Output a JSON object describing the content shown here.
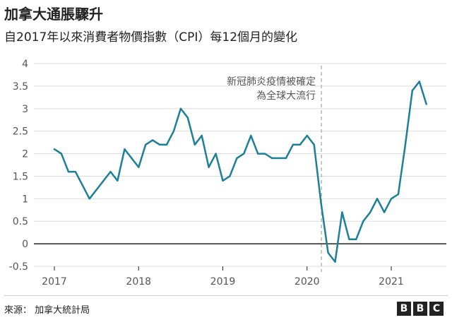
{
  "header": {
    "title": "加拿大通脹驟升",
    "subtitle": "自2017年以來消費者物價指數（CPI）每12個月的變化"
  },
  "footer": {
    "source": "來源：  加拿大統計局",
    "logo_letters": [
      "B",
      "B",
      "C"
    ]
  },
  "chart_data": {
    "type": "line",
    "title": "加拿大通脹驟升",
    "subtitle": "自2017年以來消費者物價指數（CPI）每12個月的變化",
    "x_unit": "months since Jan 2017",
    "xlim": [
      0,
      54
    ],
    "ylim": [
      -0.5,
      4
    ],
    "yticks": [
      -0.5,
      0,
      0.5,
      1,
      1.5,
      2,
      2.5,
      3,
      3.5,
      4
    ],
    "ytick_labels": [
      "-0.5",
      "0",
      "0.5",
      "1",
      "1.5",
      "2",
      "2.5",
      "3",
      "3.5",
      "4"
    ],
    "xticks": [
      {
        "label": "2017",
        "pos": 0
      },
      {
        "label": "2018",
        "pos": 12
      },
      {
        "label": "2019",
        "pos": 24
      },
      {
        "label": "2020",
        "pos": 36
      },
      {
        "label": "2021",
        "pos": 48
      }
    ],
    "grid": true,
    "colors": {
      "line": "#1d8098",
      "grid": "#dddddd",
      "zero": "#222222",
      "annotation_line": "#b8b8b8",
      "text": "#555555"
    },
    "series": [
      {
        "name": "CPI",
        "x": [
          "2017-01",
          "2017-02",
          "2017-03",
          "2017-04",
          "2017-05",
          "2017-06",
          "2017-07",
          "2017-08",
          "2017-09",
          "2017-10",
          "2017-11",
          "2017-12",
          "2018-01",
          "2018-02",
          "2018-03",
          "2018-04",
          "2018-05",
          "2018-06",
          "2018-07",
          "2018-08",
          "2018-09",
          "2018-10",
          "2018-11",
          "2018-12",
          "2019-01",
          "2019-02",
          "2019-03",
          "2019-04",
          "2019-05",
          "2019-06",
          "2019-07",
          "2019-08",
          "2019-09",
          "2019-10",
          "2019-11",
          "2019-12",
          "2020-01",
          "2020-02",
          "2020-03",
          "2020-04",
          "2020-05",
          "2020-06",
          "2020-07",
          "2020-08",
          "2020-09",
          "2020-10",
          "2020-11",
          "2020-12",
          "2021-01",
          "2021-02",
          "2021-03",
          "2021-04",
          "2021-05",
          "2021-06"
        ],
        "values": [
          2.1,
          2.0,
          1.6,
          1.6,
          1.3,
          1.0,
          1.2,
          1.4,
          1.6,
          1.4,
          2.1,
          1.9,
          1.7,
          2.2,
          2.3,
          2.2,
          2.2,
          2.5,
          3.0,
          2.8,
          2.2,
          2.4,
          1.7,
          2.0,
          1.4,
          1.5,
          1.9,
          2.0,
          2.4,
          2.0,
          2.0,
          1.9,
          1.9,
          1.9,
          2.2,
          2.2,
          2.4,
          2.2,
          0.9,
          -0.2,
          -0.4,
          0.7,
          0.1,
          0.1,
          0.5,
          0.7,
          1.0,
          0.7,
          1.0,
          1.1,
          2.2,
          3.4,
          3.6,
          3.1
        ]
      }
    ],
    "annotation": {
      "x": 38,
      "text_lines": [
        "新冠肺炎疫情被確定",
        "為全球大流行"
      ]
    }
  }
}
